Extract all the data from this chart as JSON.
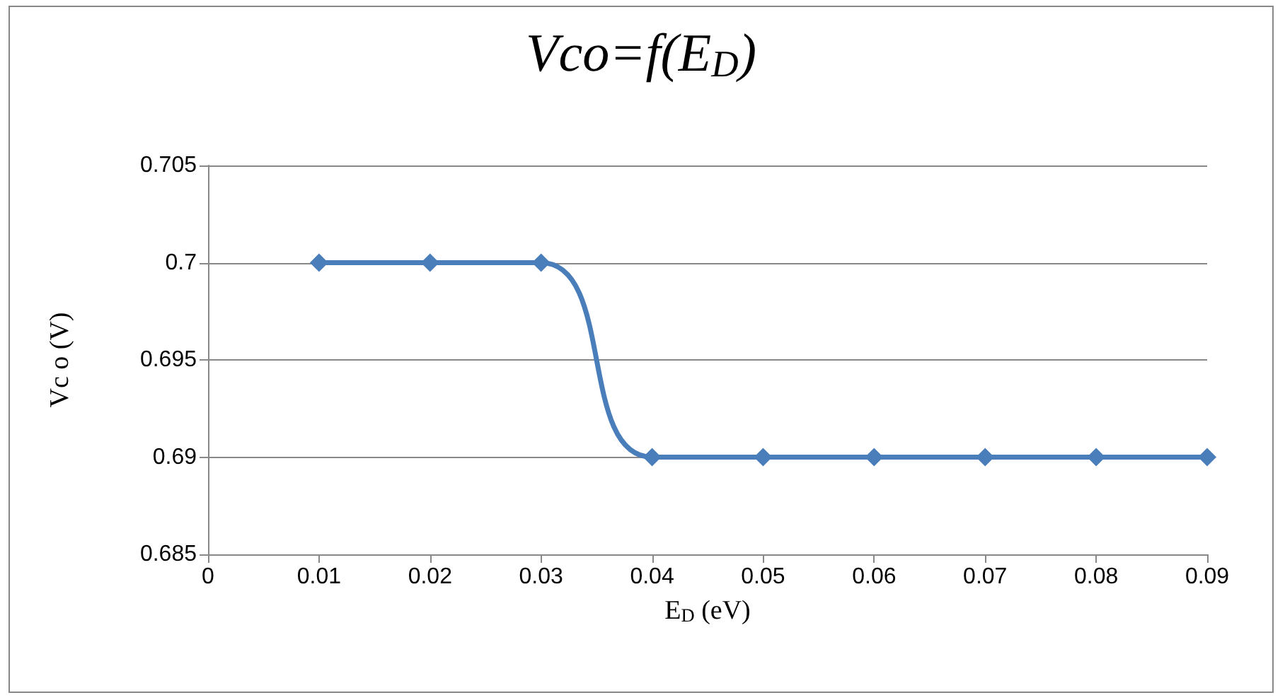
{
  "chart_data": {
    "type": "line",
    "title": "Vco=f(E$_{D}$)",
    "xlabel": "E$_{D}$ (eV)",
    "ylabel": "Vc o (V)",
    "x": [
      0.01,
      0.02,
      0.03,
      0.04,
      0.05,
      0.06,
      0.07,
      0.08,
      0.09
    ],
    "series": [
      {
        "color": "#4a7ebb",
        "values": [
          0.7,
          0.7,
          0.7,
          0.69,
          0.69,
          0.69,
          0.69,
          0.69,
          0.69
        ]
      }
    ],
    "xlim": [
      0,
      0.09
    ],
    "xticks": [
      0,
      0.01,
      0.02,
      0.03,
      0.04,
      0.05,
      0.06,
      0.07,
      0.08,
      0.09
    ],
    "ylim": [
      0.685,
      0.705
    ],
    "yticks": [
      0.685,
      0.69,
      0.695,
      0.7,
      0.705
    ],
    "grid": "y",
    "marker": "diamond",
    "line_style": "solid"
  }
}
